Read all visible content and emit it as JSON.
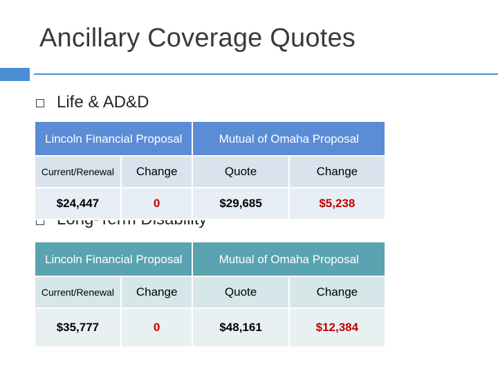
{
  "slide": {
    "title": "Ancillary Coverage Quotes",
    "colors": {
      "accent": "#4a8fd4",
      "header_blue": "#5b8cd6",
      "header_teal": "#5aa3b0",
      "cell_light": "#e8eef5",
      "cell_mid": "#d9e3ee",
      "negative": "#c00000"
    }
  },
  "bullets": [
    {
      "label": "Life & AD&D"
    },
    {
      "label": "Long-Term Disability"
    }
  ],
  "tables": [
    {
      "header_left": "Lincoln Financial Proposal",
      "header_right": "Mutual of Omaha Proposal",
      "sub_headers": [
        "Current/Renewal",
        "Change",
        "Quote",
        "Change"
      ],
      "values": [
        "$24,447",
        "0",
        "$29,685",
        "$5,238"
      ]
    },
    {
      "header_left": "Lincoln Financial Proposal",
      "header_right": "Mutual of Omaha Proposal",
      "sub_headers": [
        "Current/Renewal",
        "Change",
        "Quote",
        "Change"
      ],
      "values": [
        "$35,777",
        "0",
        "$48,161",
        "$12,384"
      ]
    }
  ]
}
